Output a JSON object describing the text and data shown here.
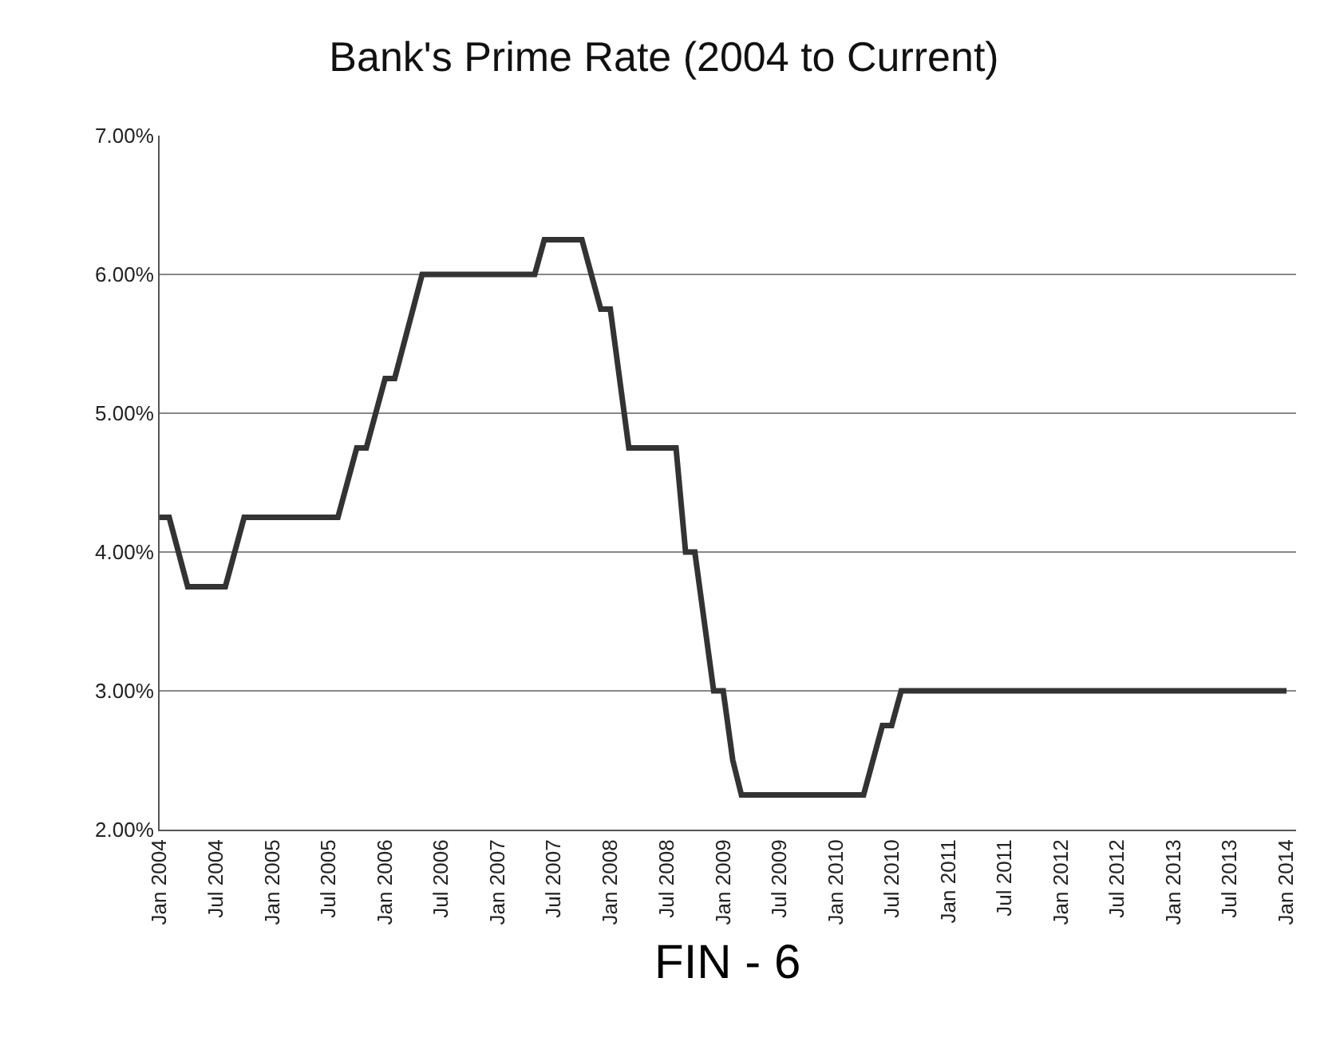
{
  "chart_data": {
    "type": "line",
    "title": "Bank's Prime Rate (2004 to Current)",
    "x": [
      "2004-01",
      "2004-02",
      "2004-04",
      "2004-08",
      "2004-10",
      "2005-08",
      "2005-10",
      "2005-11",
      "2006-01",
      "2006-02",
      "2006-05",
      "2007-05",
      "2007-06",
      "2007-10",
      "2007-12",
      "2008-01",
      "2008-03",
      "2008-08",
      "2008-09",
      "2008-10",
      "2008-12",
      "2009-01",
      "2009-02",
      "2009-03",
      "2010-04",
      "2010-06",
      "2010-07",
      "2010-08",
      "2014-01"
    ],
    "series": [
      {
        "color": "#333333",
        "values": [
          4.25,
          4.25,
          3.75,
          3.75,
          4.25,
          4.25,
          4.75,
          4.75,
          5.25,
          5.25,
          6.0,
          6.0,
          6.25,
          6.25,
          5.75,
          5.75,
          4.75,
          4.75,
          4.0,
          4.0,
          3.0,
          3.0,
          2.5,
          2.25,
          2.25,
          2.75,
          2.75,
          3.0,
          3.0
        ]
      }
    ],
    "ylim": [
      2,
      7
    ],
    "yticks": [
      {
        "value": 2,
        "label": "2.00%"
      },
      {
        "value": 3,
        "label": "3.00%"
      },
      {
        "value": 4,
        "label": "4.00%"
      },
      {
        "value": 5,
        "label": "5.00%"
      },
      {
        "value": 6,
        "label": "6.00%"
      },
      {
        "value": 7,
        "label": "7.00%"
      }
    ],
    "xlim": [
      "2004-01",
      "2014-02"
    ],
    "xticks": [
      {
        "value": "2004-01",
        "label": "Jan 2004"
      },
      {
        "value": "2004-07",
        "label": "Jul 2004"
      },
      {
        "value": "2005-01",
        "label": "Jan 2005"
      },
      {
        "value": "2005-07",
        "label": "Jul 2005"
      },
      {
        "value": "2006-01",
        "label": "Jan 2006"
      },
      {
        "value": "2006-07",
        "label": "Jul 2006"
      },
      {
        "value": "2007-01",
        "label": "Jan 2007"
      },
      {
        "value": "2007-07",
        "label": "Jul 2007"
      },
      {
        "value": "2008-01",
        "label": "Jan 2008"
      },
      {
        "value": "2008-07",
        "label": "Jul 2008"
      },
      {
        "value": "2009-01",
        "label": "Jan 2009"
      },
      {
        "value": "2009-07",
        "label": "Jul 2009"
      },
      {
        "value": "2010-01",
        "label": "Jan 2010"
      },
      {
        "value": "2010-07",
        "label": "Jul 2010"
      },
      {
        "value": "2011-01",
        "label": "Jan 2011"
      },
      {
        "value": "2011-07",
        "label": "Jul 2011"
      },
      {
        "value": "2012-01",
        "label": "Jan 2012"
      },
      {
        "value": "2012-07",
        "label": "Jul 2012"
      },
      {
        "value": "2013-01",
        "label": "Jan 2013"
      },
      {
        "value": "2013-07",
        "label": "Jul 2013"
      },
      {
        "value": "2014-01",
        "label": "Jan 2014"
      }
    ],
    "grid": "y",
    "line_style": "solid",
    "marker": "none",
    "annotations": [
      "FIN - 6"
    ]
  }
}
